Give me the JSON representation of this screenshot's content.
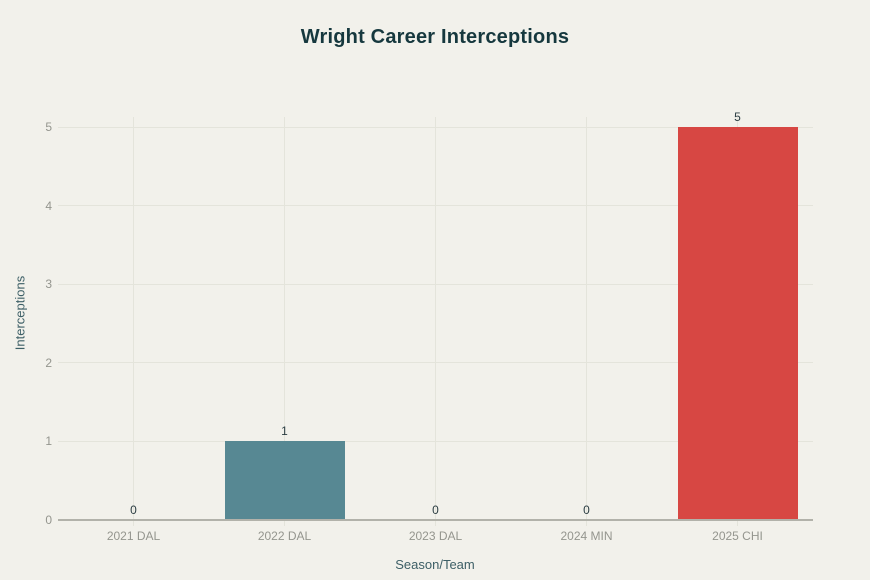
{
  "background": "#f2f1eb",
  "chart_data": {
    "type": "bar",
    "title": "Wright Career Interceptions",
    "xlabel": "Season/Team",
    "ylabel": "Interceptions",
    "categories": [
      "2021 DAL",
      "2022 DAL",
      "2023 DAL",
      "2024 MIN",
      "2025 CHI"
    ],
    "values": [
      0,
      1,
      0,
      0,
      5
    ],
    "data_labels": [
      "0",
      "1",
      "0",
      "0",
      "5"
    ],
    "bar_colors": [
      null,
      "#578893",
      null,
      null,
      "#d74743"
    ],
    "ylim": [
      0,
      5
    ],
    "yticks": [
      "0",
      "1",
      "2",
      "3",
      "4",
      "5"
    ],
    "grid": true,
    "legend": false,
    "colors": {
      "title": "#16383e",
      "axis_title": "#3d5f66",
      "tick_label": "#94958e",
      "data_label": "#2b3d42",
      "gridline": "#e4e4db",
      "axis_line": "#b2b2aa"
    }
  }
}
